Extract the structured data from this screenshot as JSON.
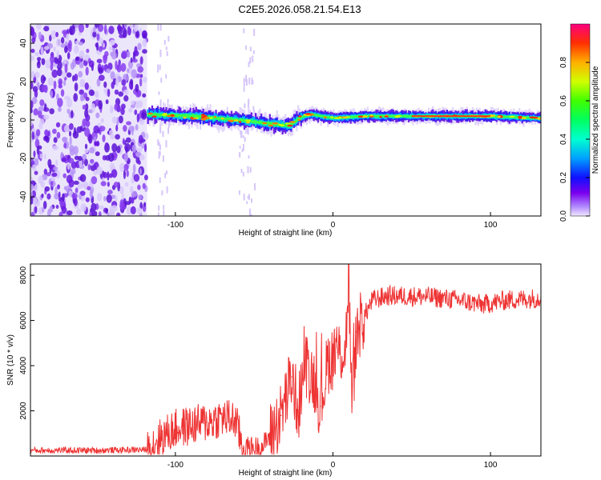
{
  "title": "C2E5.2026.058.21.54.E13",
  "chart_data": [
    {
      "type": "heatmap",
      "xlabel": "Height of straight line (km)",
      "ylabel": "Frequency (Hz)",
      "xlim": [
        -192,
        132
      ],
      "ylim": [
        -50,
        50
      ],
      "x_ticks": [
        -100,
        0,
        100
      ],
      "y_ticks": [
        -40,
        -20,
        0,
        20,
        40
      ],
      "noise_region_km": [
        -192,
        -118
      ],
      "signal_start_km": -118,
      "signal_frequency_hz": [
        {
          "x": -118,
          "y": 3
        },
        {
          "x": -90,
          "y": 2
        },
        {
          "x": -60,
          "y": 0
        },
        {
          "x": -40,
          "y": -2
        },
        {
          "x": -28,
          "y": -3
        },
        {
          "x": -22,
          "y": 1
        },
        {
          "x": -15,
          "y": 3
        },
        {
          "x": 0,
          "y": 1
        },
        {
          "x": 20,
          "y": 2
        },
        {
          "x": 60,
          "y": 2
        },
        {
          "x": 100,
          "y": 2
        },
        {
          "x": 130,
          "y": 1
        }
      ],
      "colorbar": {
        "label": "Normalized spectral amplitude",
        "range": [
          0,
          1
        ],
        "ticks": [
          "0.0",
          "0.2",
          "0.4",
          "0.6",
          "0.8"
        ]
      }
    },
    {
      "type": "line",
      "xlabel": "Height of straight line (km)",
      "ylabel": "SNR (10 * v/v)",
      "xlim": [
        -192,
        132
      ],
      "ylim": [
        0,
        8500
      ],
      "x_ticks": [
        -100,
        0,
        100
      ],
      "y_ticks": [
        2000,
        4000,
        6000,
        8000
      ],
      "color": "#ee3333",
      "series": [
        {
          "name": "SNR",
          "points": [
            {
              "x": -192,
              "y": 250
            },
            {
              "x": -150,
              "y": 250
            },
            {
              "x": -118,
              "y": 280
            },
            {
              "x": -112,
              "y": 700
            },
            {
              "x": -100,
              "y": 1200
            },
            {
              "x": -80,
              "y": 1500
            },
            {
              "x": -70,
              "y": 1700
            },
            {
              "x": -62,
              "y": 1600
            },
            {
              "x": -57,
              "y": 350
            },
            {
              "x": -45,
              "y": 400
            },
            {
              "x": -40,
              "y": 900
            },
            {
              "x": -33,
              "y": 1800
            },
            {
              "x": -26,
              "y": 3500
            },
            {
              "x": -22,
              "y": 2000
            },
            {
              "x": -18,
              "y": 4200
            },
            {
              "x": -12,
              "y": 3400
            },
            {
              "x": -8,
              "y": 2200
            },
            {
              "x": -3,
              "y": 4200
            },
            {
              "x": 3,
              "y": 4600
            },
            {
              "x": 8,
              "y": 4700
            },
            {
              "x": 10,
              "y": 8000
            },
            {
              "x": 12,
              "y": 2200
            },
            {
              "x": 15,
              "y": 5500
            },
            {
              "x": 20,
              "y": 6200
            },
            {
              "x": 25,
              "y": 6900
            },
            {
              "x": 35,
              "y": 7100
            },
            {
              "x": 60,
              "y": 7050
            },
            {
              "x": 80,
              "y": 6900
            },
            {
              "x": 95,
              "y": 6700
            },
            {
              "x": 110,
              "y": 6900
            },
            {
              "x": 132,
              "y": 7000
            }
          ]
        }
      ]
    }
  ]
}
